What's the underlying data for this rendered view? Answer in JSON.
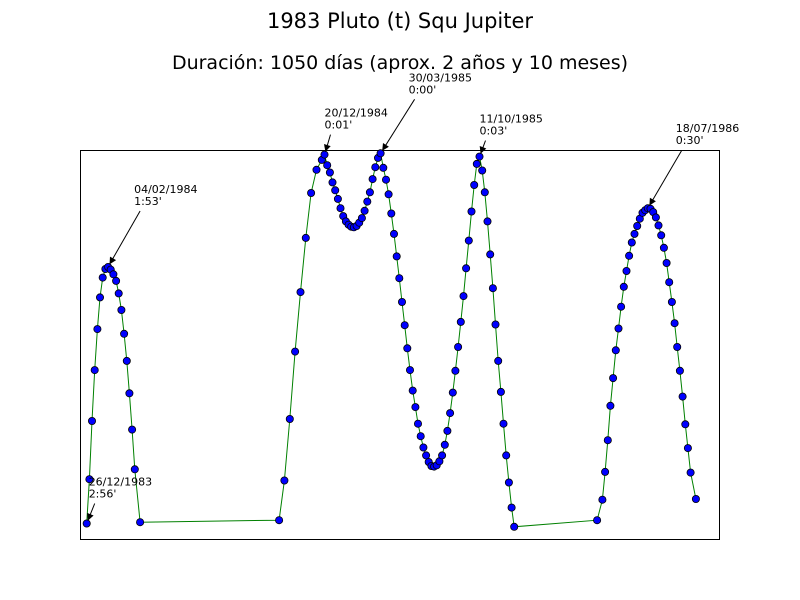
{
  "chart_data": {
    "type": "line",
    "title": "1983 Pluto (t) Squ Jupiter",
    "subtitle": "Duración: 1050 días (aprox. 2 años y 10 meses)",
    "xlabel": "",
    "ylabel": "",
    "grid": false,
    "legend": "none",
    "x_axis_ticks_visible": false,
    "y_axis_ticks_visible": false,
    "colors": {
      "line": "#008000",
      "marker_fill": "#0000ff",
      "marker_edge": "#000000"
    },
    "series": [
      {
        "points": [
          [
            0,
            5.6
          ],
          [
            2,
            4.93
          ],
          [
            4,
            4.05
          ],
          [
            6,
            3.28
          ],
          [
            8,
            2.66
          ],
          [
            10,
            2.18
          ],
          [
            12,
            1.88
          ],
          [
            14,
            1.75
          ],
          [
            16,
            1.72
          ],
          [
            18,
            1.76
          ],
          [
            20,
            1.83
          ],
          [
            22,
            1.93
          ],
          [
            24,
            2.12
          ],
          [
            26,
            2.37
          ],
          [
            28,
            2.73
          ],
          [
            30,
            3.14
          ],
          [
            32,
            3.63
          ],
          [
            34,
            4.18
          ],
          [
            36,
            4.78
          ],
          [
            40,
            5.58
          ],
          [
            144,
            5.55
          ],
          [
            148,
            4.95
          ],
          [
            152,
            4.02
          ],
          [
            156,
            3.0
          ],
          [
            160,
            2.1
          ],
          [
            164,
            1.28
          ],
          [
            168,
            0.6
          ],
          [
            172,
            0.25
          ],
          [
            176,
            0.1
          ],
          [
            178,
            0.02
          ],
          [
            180,
            0.18
          ],
          [
            182,
            0.29
          ],
          [
            184,
            0.44
          ],
          [
            186,
            0.56
          ],
          [
            188,
            0.69
          ],
          [
            190,
            0.83
          ],
          [
            192,
            0.95
          ],
          [
            194,
            1.03
          ],
          [
            196,
            1.08
          ],
          [
            198,
            1.11
          ],
          [
            200,
            1.12
          ],
          [
            202,
            1.1
          ],
          [
            204,
            1.05
          ],
          [
            206,
            0.98
          ],
          [
            208,
            0.87
          ],
          [
            210,
            0.73
          ],
          [
            212,
            0.59
          ],
          [
            214,
            0.39
          ],
          [
            216,
            0.21
          ],
          [
            218,
            0.07
          ],
          [
            220,
            0.0
          ],
          [
            222,
            0.22
          ],
          [
            224,
            0.4
          ],
          [
            226,
            0.62
          ],
          [
            228,
            0.91
          ],
          [
            230,
            1.22
          ],
          [
            232,
            1.56
          ],
          [
            234,
            1.89
          ],
          [
            236,
            2.25
          ],
          [
            238,
            2.6
          ],
          [
            240,
            2.95
          ],
          [
            242,
            3.28
          ],
          [
            244,
            3.59
          ],
          [
            246,
            3.84
          ],
          [
            248,
            4.09
          ],
          [
            250,
            4.28
          ],
          [
            252,
            4.45
          ],
          [
            254,
            4.57
          ],
          [
            256,
            4.67
          ],
          [
            258,
            4.73
          ],
          [
            260,
            4.74
          ],
          [
            262,
            4.72
          ],
          [
            264,
            4.66
          ],
          [
            266,
            4.57
          ],
          [
            268,
            4.41
          ],
          [
            270,
            4.2
          ],
          [
            272,
            3.93
          ],
          [
            274,
            3.62
          ],
          [
            276,
            3.29
          ],
          [
            278,
            2.93
          ],
          [
            280,
            2.55
          ],
          [
            282,
            2.16
          ],
          [
            284,
            1.74
          ],
          [
            286,
            1.32
          ],
          [
            288,
            0.88
          ],
          [
            290,
            0.48
          ],
          [
            292,
            0.16
          ],
          [
            294,
            0.05
          ],
          [
            296,
            0.26
          ],
          [
            298,
            0.59
          ],
          [
            300,
            1.03
          ],
          [
            302,
            1.53
          ],
          [
            304,
            2.04
          ],
          [
            306,
            2.59
          ],
          [
            308,
            3.14
          ],
          [
            310,
            3.61
          ],
          [
            312,
            4.09
          ],
          [
            314,
            4.57
          ],
          [
            316,
            4.98
          ],
          [
            318,
            5.36
          ],
          [
            320,
            5.65
          ],
          [
            382,
            5.55
          ],
          [
            386,
            5.24
          ],
          [
            388,
            4.82
          ],
          [
            390,
            4.34
          ],
          [
            392,
            3.82
          ],
          [
            394,
            3.4
          ],
          [
            396,
            2.98
          ],
          [
            398,
            2.65
          ],
          [
            400,
            2.32
          ],
          [
            402,
            2.02
          ],
          [
            404,
            1.78
          ],
          [
            406,
            1.55
          ],
          [
            408,
            1.35
          ],
          [
            410,
            1.22
          ],
          [
            412,
            1.1
          ],
          [
            414,
            0.99
          ],
          [
            416,
            0.9
          ],
          [
            418,
            0.86
          ],
          [
            420,
            0.83
          ],
          [
            422,
            0.84
          ],
          [
            424,
            0.89
          ],
          [
            426,
            0.97
          ],
          [
            428,
            1.09
          ],
          [
            430,
            1.24
          ],
          [
            432,
            1.43
          ],
          [
            434,
            1.66
          ],
          [
            436,
            1.95
          ],
          [
            438,
            2.25
          ],
          [
            440,
            2.57
          ],
          [
            442,
            2.93
          ],
          [
            444,
            3.29
          ],
          [
            446,
            3.68
          ],
          [
            448,
            4.1
          ],
          [
            450,
            4.46
          ],
          [
            452,
            4.83
          ],
          [
            456,
            5.23
          ]
        ]
      }
    ],
    "xlim": [
      -5,
      474
    ],
    "ylim": [
      -0.05,
      5.85
    ],
    "y_inverted": true,
    "annotations": [
      {
        "date": "26/12/1983",
        "value": "2:56'",
        "x": 0,
        "y": 5.6
      },
      {
        "date": "04/02/1984",
        "value": "1:53'",
        "x": 16,
        "y": 1.72
      },
      {
        "date": "20/12/1984",
        "value": "0:01'",
        "x": 178,
        "y": 0.02
      },
      {
        "date": "30/03/1985",
        "value": "0:00'",
        "x": 220,
        "y": 0.0
      },
      {
        "date": "11/10/1985",
        "value": "0:03'",
        "x": 294,
        "y": 0.05
      },
      {
        "date": "18/07/1986",
        "value": "0:30'",
        "x": 420,
        "y": 0.83
      }
    ]
  }
}
